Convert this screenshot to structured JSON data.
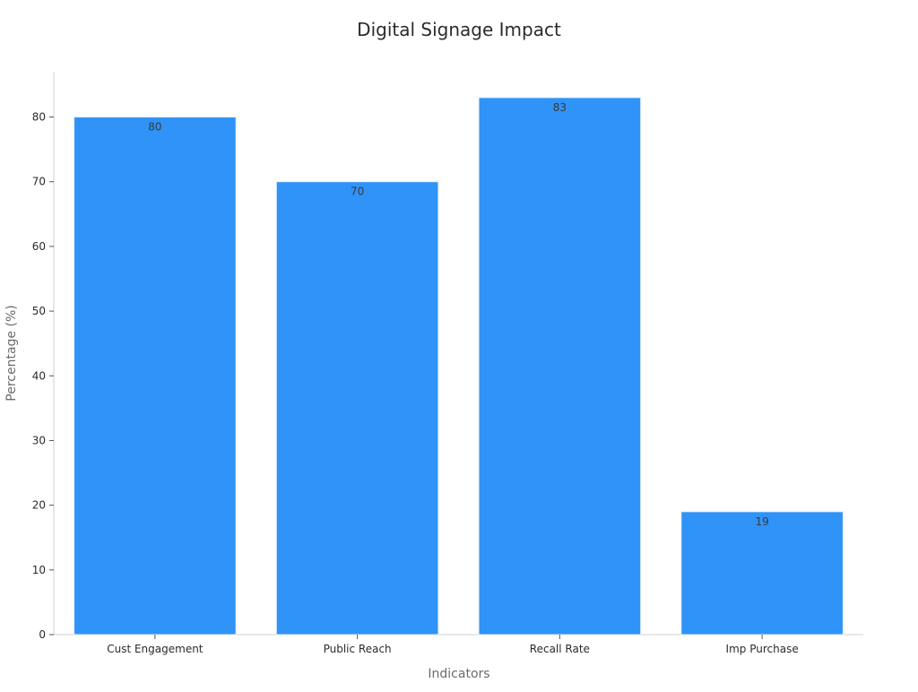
{
  "chart_data": {
    "type": "bar",
    "title": "Digital Signage Impact",
    "xlabel": "Indicators",
    "ylabel": "Percentage (%)",
    "categories": [
      "Cust Engagement",
      "Public Reach",
      "Recall Rate",
      "Imp Purchase"
    ],
    "values": [
      80,
      70,
      83,
      19
    ],
    "data_labels": [
      "80",
      "70",
      "83",
      "19"
    ],
    "yticks": [
      0,
      10,
      20,
      30,
      40,
      50,
      60,
      70,
      80
    ],
    "ylim": [
      0,
      87
    ],
    "grid": false,
    "legend": "none",
    "bar_color": "#2f93f8"
  }
}
